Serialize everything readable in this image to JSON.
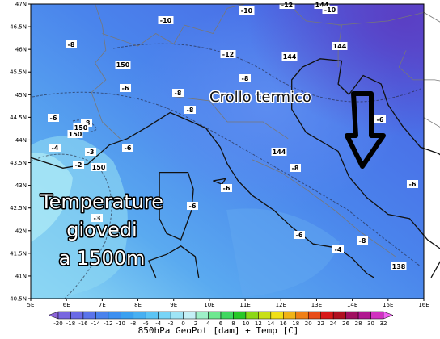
{
  "map": {
    "lat_labels": [
      "47N",
      "46.5N",
      "46N",
      "45.5N",
      "45N",
      "44.5N",
      "44N",
      "43.5N",
      "43N",
      "42.5N",
      "42N",
      "41.5N",
      "41N",
      "40.5N"
    ],
    "lon_labels": [
      "5E",
      "6E",
      "7E",
      "8E",
      "9E",
      "10E",
      "11E",
      "12E",
      "13E",
      "14E",
      "15E",
      "16E"
    ],
    "annotation_top": "Crollo termico",
    "annotation_left": [
      "Temperature",
      "giovedi",
      "a 1500m"
    ],
    "contour_labels": [
      "-8",
      "-10",
      "-10",
      "-12",
      "144",
      "-10",
      "144",
      "144",
      "-12",
      "150",
      "-6",
      "-8",
      "-8",
      "-8",
      "-6",
      "-8",
      "150",
      "150",
      "-6",
      "-4",
      "-3",
      "-2",
      "150",
      "144",
      "-8",
      "-6",
      "-6",
      "-3",
      "-6",
      "-4",
      "-8",
      "-6",
      "138",
      "-6"
    ]
  },
  "colorbar": {
    "labels": [
      "-20",
      "-18",
      "-16",
      "-14",
      "-12",
      "-10",
      "-8",
      "-6",
      "-4",
      "-2",
      "0",
      "2",
      "4",
      "6",
      "8",
      "10",
      "12",
      "14",
      "16",
      "18",
      "20",
      "22",
      "24",
      "26",
      "28",
      "30",
      "32"
    ]
  },
  "footer": "850hPa GeoPot [dam] + Temp [C]"
}
